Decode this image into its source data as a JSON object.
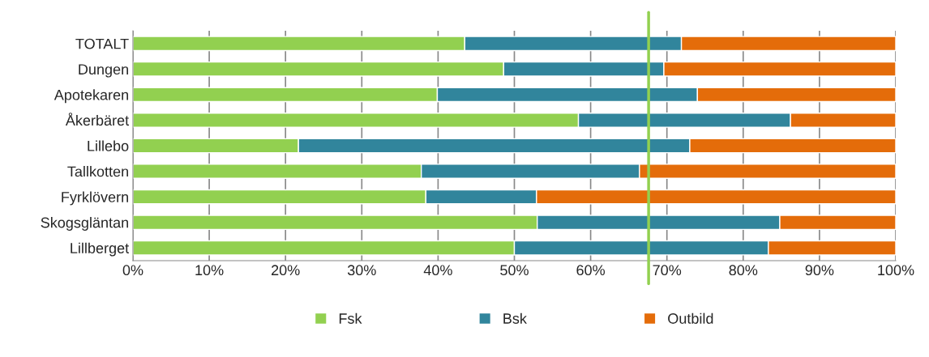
{
  "chart_data": {
    "type": "bar",
    "orientation": "horizontal",
    "stacked": true,
    "categories": [
      "TOTALT",
      "Dungen",
      "Apotekaren",
      "Åkerbäret",
      "Lillebo",
      "Tallkotten",
      "Fyrklövern",
      "Skogsgläntan",
      "Lillberget"
    ],
    "series": [
      {
        "name": "Fsk",
        "color": "#92d050",
        "values": [
          43.5,
          48.6,
          39.9,
          58.4,
          21.7,
          37.8,
          38.4,
          53.0,
          50.0
        ]
      },
      {
        "name": "Bsk",
        "color": "#31859c",
        "values": [
          28.4,
          21.0,
          34.1,
          27.8,
          51.3,
          28.6,
          14.5,
          31.8,
          33.3
        ]
      },
      {
        "name": "Outbild",
        "color": "#e46c0a",
        "values": [
          28.1,
          30.4,
          26.0,
          13.8,
          27.0,
          33.6,
          47.1,
          15.2,
          16.7
        ]
      }
    ],
    "xlim": [
      0,
      100
    ],
    "xticks": [
      {
        "value": 0,
        "label": "0%"
      },
      {
        "value": 10,
        "label": "10%"
      },
      {
        "value": 20,
        "label": "20%"
      },
      {
        "value": 30,
        "label": "30%"
      },
      {
        "value": 40,
        "label": "40%"
      },
      {
        "value": 50,
        "label": "50%"
      },
      {
        "value": 60,
        "label": "60%"
      },
      {
        "value": 70,
        "label": "70%"
      },
      {
        "value": 80,
        "label": "80%"
      },
      {
        "value": 90,
        "label": "90%"
      },
      {
        "value": 100,
        "label": "100%"
      }
    ],
    "ref_lines": [
      {
        "axis": "x",
        "value": 67.6,
        "color": "#92d050"
      }
    ],
    "grid": "x",
    "legend": "bottom"
  }
}
